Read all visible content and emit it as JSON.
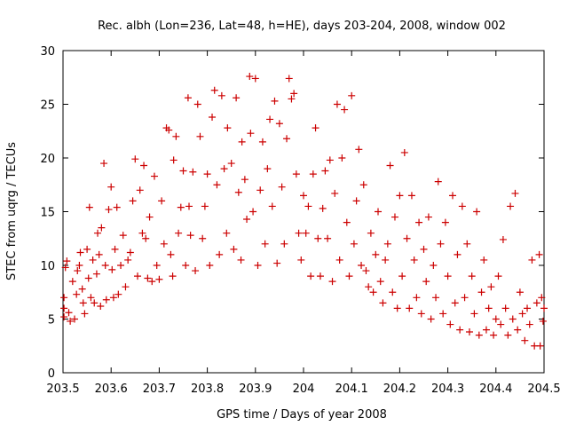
{
  "chart_data": {
    "type": "scatter",
    "title": "Rec. albh (Lon=236, Lat=48, h=HE), days 203-204, 2008, window 002",
    "xlabel": "GPS time / Days of year 2008",
    "ylabel": "STEC from uqrg / TECUs",
    "xlim": [
      203.5,
      204.5
    ],
    "ylim": [
      0,
      30
    ],
    "x_ticks": [
      "203.5",
      "203.6",
      "203.7",
      "203.8",
      "203.9",
      "204",
      "204.1",
      "204.2",
      "204.3",
      "204.4",
      "204.5"
    ],
    "y_ticks": [
      "0",
      "5",
      "10",
      "15",
      "20",
      "25",
      "30"
    ],
    "grid": false,
    "marker": "+",
    "color": "#cc0000",
    "points": [
      [
        203.502,
        5.2
      ],
      [
        203.502,
        6.0
      ],
      [
        203.502,
        7.0
      ],
      [
        203.505,
        9.8
      ],
      [
        203.508,
        10.4
      ],
      [
        203.512,
        5.6
      ],
      [
        203.515,
        4.8
      ],
      [
        203.52,
        8.5
      ],
      [
        203.524,
        5.0
      ],
      [
        203.528,
        7.3
      ],
      [
        203.53,
        9.5
      ],
      [
        203.534,
        10.0
      ],
      [
        203.536,
        11.2
      ],
      [
        203.54,
        7.8
      ],
      [
        203.542,
        6.5
      ],
      [
        203.545,
        5.5
      ],
      [
        203.55,
        11.5
      ],
      [
        203.553,
        8.8
      ],
      [
        203.555,
        15.4
      ],
      [
        203.558,
        7.0
      ],
      [
        203.562,
        10.5
      ],
      [
        203.565,
        6.5
      ],
      [
        203.57,
        9.2
      ],
      [
        203.572,
        13.0
      ],
      [
        203.575,
        11.0
      ],
      [
        203.578,
        6.2
      ],
      [
        203.58,
        13.5
      ],
      [
        203.585,
        19.5
      ],
      [
        203.588,
        10.0
      ],
      [
        203.59,
        6.8
      ],
      [
        203.595,
        15.2
      ],
      [
        203.6,
        17.3
      ],
      [
        203.602,
        9.6
      ],
      [
        203.605,
        7.0
      ],
      [
        203.608,
        11.5
      ],
      [
        203.612,
        15.4
      ],
      [
        203.615,
        7.3
      ],
      [
        203.62,
        10.0
      ],
      [
        203.625,
        12.8
      ],
      [
        203.63,
        8.0
      ],
      [
        203.635,
        10.5
      ],
      [
        203.64,
        11.2
      ],
      [
        203.645,
        16.0
      ],
      [
        203.65,
        19.9
      ],
      [
        203.655,
        9.0
      ],
      [
        203.66,
        17.0
      ],
      [
        203.665,
        13.0
      ],
      [
        203.668,
        19.3
      ],
      [
        203.672,
        12.5
      ],
      [
        203.676,
        8.8
      ],
      [
        203.68,
        14.5
      ],
      [
        203.685,
        8.5
      ],
      [
        203.69,
        18.3
      ],
      [
        203.695,
        10.0
      ],
      [
        203.7,
        8.7
      ],
      [
        203.705,
        16.0
      ],
      [
        203.71,
        12.0
      ],
      [
        203.715,
        22.8
      ],
      [
        203.72,
        22.6
      ],
      [
        203.724,
        11.0
      ],
      [
        203.728,
        9.0
      ],
      [
        203.73,
        19.8
      ],
      [
        203.735,
        22.0
      ],
      [
        203.74,
        13.0
      ],
      [
        203.745,
        15.4
      ],
      [
        203.75,
        18.8
      ],
      [
        203.755,
        10.0
      ],
      [
        203.76,
        25.6
      ],
      [
        203.762,
        15.5
      ],
      [
        203.765,
        12.8
      ],
      [
        203.77,
        18.7
      ],
      [
        203.775,
        9.5
      ],
      [
        203.78,
        25.0
      ],
      [
        203.785,
        22.0
      ],
      [
        203.79,
        12.5
      ],
      [
        203.795,
        15.5
      ],
      [
        203.8,
        18.5
      ],
      [
        203.805,
        10.0
      ],
      [
        203.81,
        23.8
      ],
      [
        203.815,
        26.3
      ],
      [
        203.82,
        17.5
      ],
      [
        203.825,
        11.0
      ],
      [
        203.83,
        25.8
      ],
      [
        203.835,
        19.0
      ],
      [
        203.84,
        13.0
      ],
      [
        203.842,
        22.8
      ],
      [
        203.85,
        19.5
      ],
      [
        203.855,
        11.5
      ],
      [
        203.86,
        25.6
      ],
      [
        203.865,
        16.8
      ],
      [
        203.87,
        10.5
      ],
      [
        203.872,
        21.5
      ],
      [
        203.878,
        18.0
      ],
      [
        203.882,
        14.3
      ],
      [
        203.888,
        27.6
      ],
      [
        203.89,
        22.3
      ],
      [
        203.895,
        15.0
      ],
      [
        203.9,
        27.4
      ],
      [
        203.905,
        10.0
      ],
      [
        203.91,
        17.0
      ],
      [
        203.915,
        21.5
      ],
      [
        203.92,
        12.0
      ],
      [
        203.925,
        19.0
      ],
      [
        203.93,
        23.6
      ],
      [
        203.935,
        15.5
      ],
      [
        203.94,
        25.3
      ],
      [
        203.945,
        10.2
      ],
      [
        203.95,
        23.2
      ],
      [
        203.955,
        17.3
      ],
      [
        203.96,
        12.0
      ],
      [
        203.965,
        21.8
      ],
      [
        203.97,
        27.4
      ],
      [
        203.975,
        25.5
      ],
      [
        203.98,
        26.0
      ],
      [
        203.985,
        18.5
      ],
      [
        203.99,
        13.0
      ],
      [
        203.995,
        10.5
      ],
      [
        204.0,
        16.5
      ],
      [
        204.005,
        13.0
      ],
      [
        204.01,
        15.5
      ],
      [
        204.015,
        9.0
      ],
      [
        204.02,
        18.5
      ],
      [
        204.025,
        22.8
      ],
      [
        204.03,
        12.5
      ],
      [
        204.035,
        9.0
      ],
      [
        204.04,
        15.3
      ],
      [
        204.045,
        18.8
      ],
      [
        204.05,
        12.5
      ],
      [
        204.055,
        19.8
      ],
      [
        204.06,
        8.5
      ],
      [
        204.065,
        16.7
      ],
      [
        204.07,
        25.0
      ],
      [
        204.075,
        10.5
      ],
      [
        204.08,
        20.0
      ],
      [
        204.085,
        24.5
      ],
      [
        204.09,
        14.0
      ],
      [
        204.095,
        9.0
      ],
      [
        204.1,
        25.8
      ],
      [
        204.105,
        12.0
      ],
      [
        204.11,
        16.0
      ],
      [
        204.115,
        20.8
      ],
      [
        204.12,
        10.0
      ],
      [
        204.125,
        17.5
      ],
      [
        204.13,
        9.5
      ],
      [
        204.135,
        8.0
      ],
      [
        204.14,
        13.0
      ],
      [
        204.145,
        7.5
      ],
      [
        204.15,
        11.0
      ],
      [
        204.155,
        15.0
      ],
      [
        204.16,
        8.5
      ],
      [
        204.165,
        6.5
      ],
      [
        204.17,
        10.5
      ],
      [
        204.175,
        12.0
      ],
      [
        204.18,
        19.3
      ],
      [
        204.185,
        7.5
      ],
      [
        204.19,
        14.5
      ],
      [
        204.195,
        6.0
      ],
      [
        204.2,
        16.5
      ],
      [
        204.205,
        9.0
      ],
      [
        204.21,
        20.5
      ],
      [
        204.215,
        12.5
      ],
      [
        204.22,
        6.0
      ],
      [
        204.225,
        16.5
      ],
      [
        204.23,
        10.5
      ],
      [
        204.235,
        7.0
      ],
      [
        204.24,
        14.0
      ],
      [
        204.245,
        5.5
      ],
      [
        204.25,
        11.5
      ],
      [
        204.255,
        8.5
      ],
      [
        204.26,
        14.5
      ],
      [
        204.265,
        5.0
      ],
      [
        204.27,
        10.0
      ],
      [
        204.275,
        7.0
      ],
      [
        204.28,
        17.8
      ],
      [
        204.285,
        12.0
      ],
      [
        204.29,
        5.5
      ],
      [
        204.295,
        14.0
      ],
      [
        204.3,
        9.0
      ],
      [
        204.305,
        4.5
      ],
      [
        204.31,
        16.5
      ],
      [
        204.315,
        6.5
      ],
      [
        204.32,
        11.0
      ],
      [
        204.325,
        4.0
      ],
      [
        204.33,
        15.5
      ],
      [
        204.335,
        7.0
      ],
      [
        204.34,
        12.0
      ],
      [
        204.345,
        3.8
      ],
      [
        204.35,
        9.0
      ],
      [
        204.355,
        5.5
      ],
      [
        204.36,
        15.0
      ],
      [
        204.365,
        3.5
      ],
      [
        204.37,
        7.5
      ],
      [
        204.375,
        10.5
      ],
      [
        204.38,
        4.0
      ],
      [
        204.385,
        6.0
      ],
      [
        204.39,
        8.0
      ],
      [
        204.395,
        3.5
      ],
      [
        204.4,
        5.0
      ],
      [
        204.405,
        9.0
      ],
      [
        204.41,
        4.5
      ],
      [
        204.415,
        12.4
      ],
      [
        204.42,
        6.0
      ],
      [
        204.425,
        3.5
      ],
      [
        204.43,
        15.5
      ],
      [
        204.435,
        5.0
      ],
      [
        204.44,
        16.7
      ],
      [
        204.445,
        4.0
      ],
      [
        204.45,
        7.5
      ],
      [
        204.455,
        5.5
      ],
      [
        204.46,
        3.0
      ],
      [
        204.465,
        6.0
      ],
      [
        204.47,
        4.5
      ],
      [
        204.475,
        10.5
      ],
      [
        204.48,
        2.5
      ],
      [
        204.485,
        6.5
      ],
      [
        204.49,
        11.0
      ],
      [
        204.492,
        2.5
      ],
      [
        204.495,
        7.0
      ],
      [
        204.498,
        4.8
      ],
      [
        204.5,
        6.0
      ]
    ]
  }
}
